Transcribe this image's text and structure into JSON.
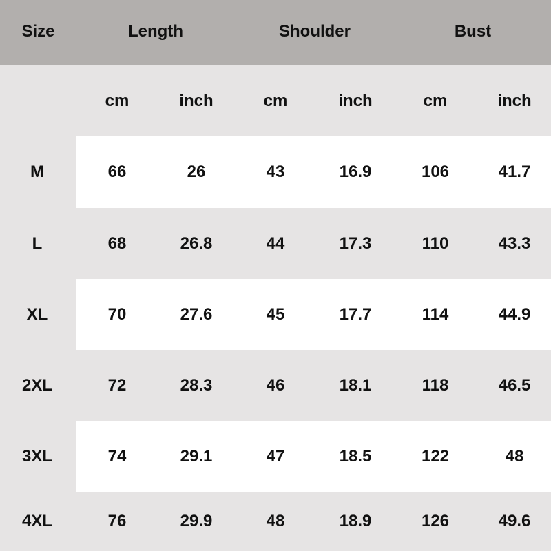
{
  "header": {
    "size": "Size",
    "groups": [
      "Length",
      "Shoulder",
      "Bust"
    ]
  },
  "units": [
    "cm",
    "inch",
    "cm",
    "inch",
    "cm",
    "inch"
  ],
  "rows": [
    {
      "size": "M",
      "values": [
        "66",
        "26",
        "43",
        "16.9",
        "106",
        "41.7"
      ]
    },
    {
      "size": "L",
      "values": [
        "68",
        "26.8",
        "44",
        "17.3",
        "110",
        "43.3"
      ]
    },
    {
      "size": "XL",
      "values": [
        "70",
        "27.6",
        "45",
        "17.7",
        "114",
        "44.9"
      ]
    },
    {
      "size": "2XL",
      "values": [
        "72",
        "28.3",
        "46",
        "18.1",
        "118",
        "46.5"
      ]
    },
    {
      "size": "3XL",
      "values": [
        "74",
        "29.1",
        "47",
        "18.5",
        "122",
        "48"
      ]
    },
    {
      "size": "4XL",
      "values": [
        "76",
        "29.9",
        "48",
        "18.9",
        "126",
        "49.6"
      ]
    }
  ],
  "colors": {
    "header_bg": "#b2afad",
    "alt_bg": "#e6e4e4",
    "white_bg": "#ffffff",
    "text": "#111111"
  }
}
